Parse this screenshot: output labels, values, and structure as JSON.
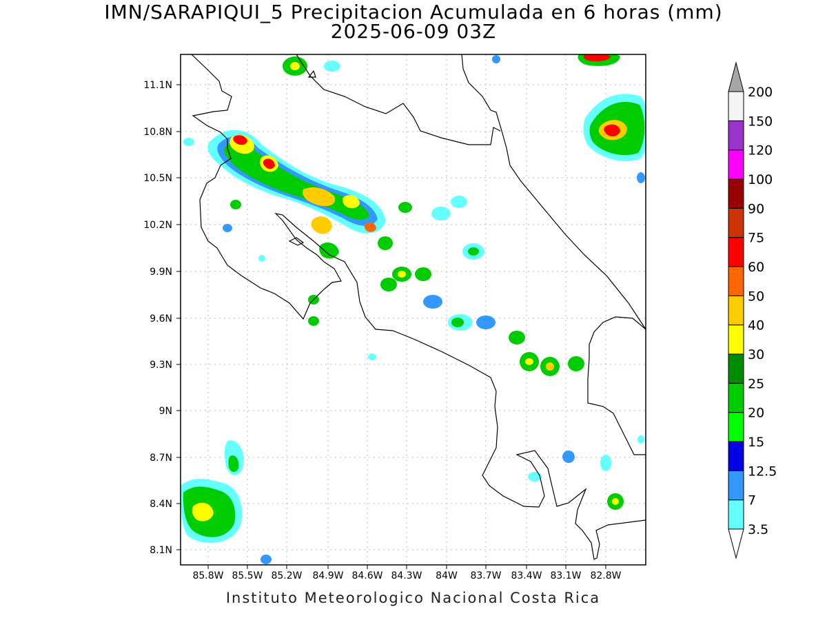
{
  "header": {
    "title_line1": "IMN/SARAPIQUI_5 Precipitacion Acumulada en 6 horas (mm)",
    "title_line2": "2025-06-09 03Z"
  },
  "footer": {
    "credit": "Instituto Meteorologico Nacional Costa Rica"
  },
  "map": {
    "lon_range": [
      -86.0,
      -83.0
    ],
    "lat_range": [
      8.0,
      11.2
    ],
    "lat_ticks": [
      "11.1N",
      "10.8N",
      "10.5N",
      "10.2N",
      "9.9N",
      "9.6N",
      "9.3N",
      "9N",
      "8.7N",
      "8.4N",
      "8.1N"
    ],
    "lon_ticks": [
      "85.8W",
      "85.5W",
      "85.2W",
      "84.9W",
      "84.6W",
      "84.3W",
      "84W",
      "83.7W",
      "83.4W",
      "83.1W",
      "82.8W"
    ],
    "gridlines": "dotted"
  },
  "legend": {
    "bins": [
      {
        "label": "3.5",
        "color": "#ffffff"
      },
      {
        "label": "7",
        "color": "#66ffff"
      },
      {
        "label": "12.5",
        "color": "#3399ff"
      },
      {
        "label": "15",
        "color": "#0000e6"
      },
      {
        "label": "20",
        "color": "#00ff00"
      },
      {
        "label": "25",
        "color": "#00cc00"
      },
      {
        "label": "30",
        "color": "#008c00"
      },
      {
        "label": "40",
        "color": "#ffff00"
      },
      {
        "label": "50",
        "color": "#ffcc00"
      },
      {
        "label": "60",
        "color": "#ff6600"
      },
      {
        "label": "75",
        "color": "#ff0000"
      },
      {
        "label": "90",
        "color": "#cc3300"
      },
      {
        "label": "100",
        "color": "#990000"
      },
      {
        "label": "120",
        "color": "#ff00ff"
      },
      {
        "label": "150",
        "color": "#9933cc"
      },
      {
        "label": "200",
        "color": "#f5f5f5"
      }
    ],
    "top_arrow_color": "#a6a6a6"
  }
}
